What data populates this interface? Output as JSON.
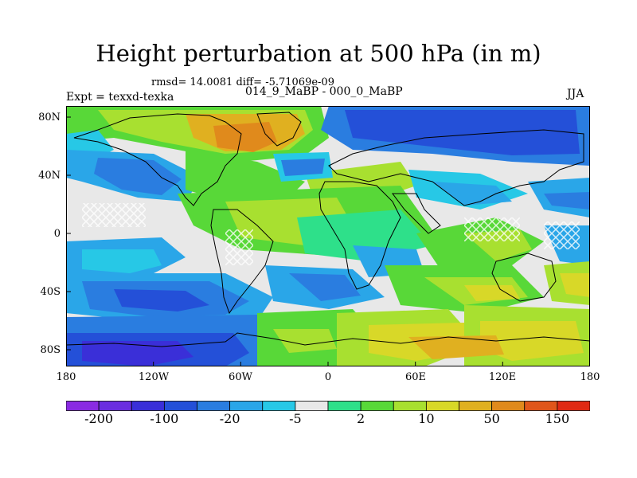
{
  "title": "Height perturbation at 500 hPa (in m)",
  "stats_text": "rmsd= 14.0081 diff= -5.71069e-09",
  "comparison_text": "014_9_MaBP - 000_0_MaBP",
  "experiment_text": "Expt = texxd-texka",
  "season": "JJA",
  "lat_ticks": [
    "80N",
    "40N",
    "0",
    "40S",
    "80S"
  ],
  "lon_ticks": [
    "180",
    "120W",
    "60W",
    "0",
    "60E",
    "120E",
    "180"
  ],
  "colorbar": {
    "labels": [
      "-200",
      "-100",
      "-20",
      "-5",
      "2",
      "10",
      "50",
      "150"
    ],
    "colors": [
      "#8a2be2",
      "#6a2de0",
      "#3a2fd8",
      "#2450d8",
      "#2a7de0",
      "#2aa6e8",
      "#27c8e6",
      "#e8e8e8",
      "#2ee08a",
      "#58d838",
      "#a8e030",
      "#d8d828",
      "#e0b020",
      "#e08a1c",
      "#e0561a",
      "#e02a14"
    ]
  },
  "chart_data": {
    "type": "heatmap",
    "title": "Height perturbation at 500 hPa (in m)",
    "variable": "Height perturbation at 500 hPa",
    "units": "m",
    "rmsd": 14.0081,
    "diff": -5.71069e-09,
    "experiment": "texxd-texka",
    "comparison": "014_9_MaBP - 000_0_MaBP",
    "season": "JJA",
    "x_range": [
      -180,
      180
    ],
    "y_range": [
      -90,
      90
    ],
    "x_ticks": [
      "180",
      "120W",
      "60W",
      "0",
      "60E",
      "120E",
      "180"
    ],
    "y_ticks": [
      "80N",
      "40N",
      "0",
      "40S",
      "80S"
    ],
    "levels": [
      -200,
      -100,
      -20,
      -5,
      2,
      10,
      50,
      150
    ]
  }
}
